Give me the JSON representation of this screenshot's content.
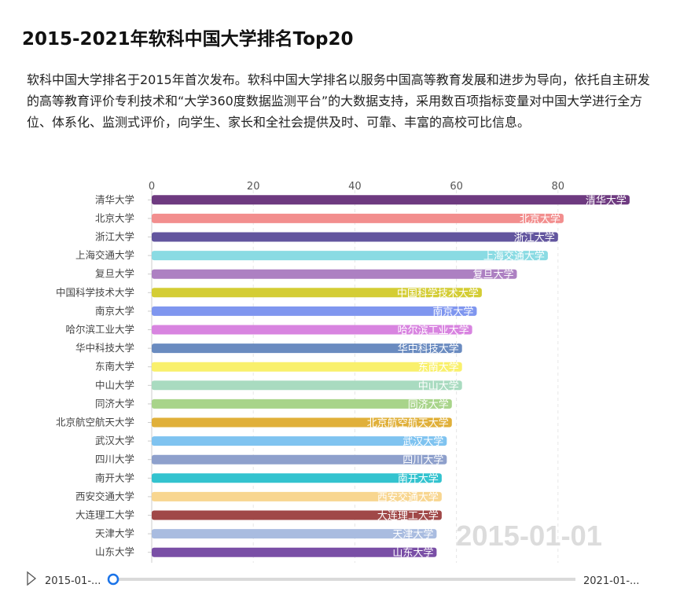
{
  "title": "2015-2021年软科中国大学排名Top20",
  "description": "软科中国大学排名于2015年首次发布。软科中国大学排名以服务中国高等教育发展和进步为导向，依托自主研发的高等教育评价专利技术和“大学360度数据监测平台”的大数据支持，采用数百项指标变量对中国大学进行全方位、体系化、监测式评价，向学生、家长和全社会提供及时、可靠、丰富的高校可比信息。",
  "timeline": {
    "start_label": "2015-01-...",
    "end_label": "2021-01-...",
    "position": 0
  },
  "chart_data": {
    "type": "bar",
    "orientation": "horizontal",
    "period_label": "2015-01-01",
    "xlim": [
      0,
      100
    ],
    "xticks": [
      0,
      20,
      40,
      60,
      80
    ],
    "grid": true,
    "categories": [
      "清华大学",
      "北京大学",
      "浙江大学",
      "上海交通大学",
      "复旦大学",
      "中国科学技术大学",
      "南京大学",
      "哈尔滨工业大学",
      "华中科技大学",
      "东南大学",
      "中山大学",
      "同济大学",
      "北京航空航天大学",
      "武汉大学",
      "四川大学",
      "南开大学",
      "西安交通大学",
      "大连理工大学",
      "天津大学",
      "山东大学"
    ],
    "values": [
      94.1,
      81.1,
      80.0,
      78.0,
      71.9,
      65.0,
      64.0,
      63.1,
      61.1,
      61.1,
      61.1,
      59.1,
      59.1,
      58.1,
      58.1,
      57.1,
      57.1,
      57.1,
      56.1,
      56.1
    ],
    "colors": [
      "#6e3a80",
      "#f28e8e",
      "#62559e",
      "#8adbe3",
      "#ad80c2",
      "#d4cd35",
      "#7f96ef",
      "#d884e0",
      "#6a8bc0",
      "#f9f06c",
      "#a9dbc0",
      "#a8d48a",
      "#e0b03a",
      "#7fc3f0",
      "#8ea0cc",
      "#33c3cf",
      "#f8d690",
      "#a04848",
      "#a9bce0",
      "#7a4fa6"
    ]
  }
}
